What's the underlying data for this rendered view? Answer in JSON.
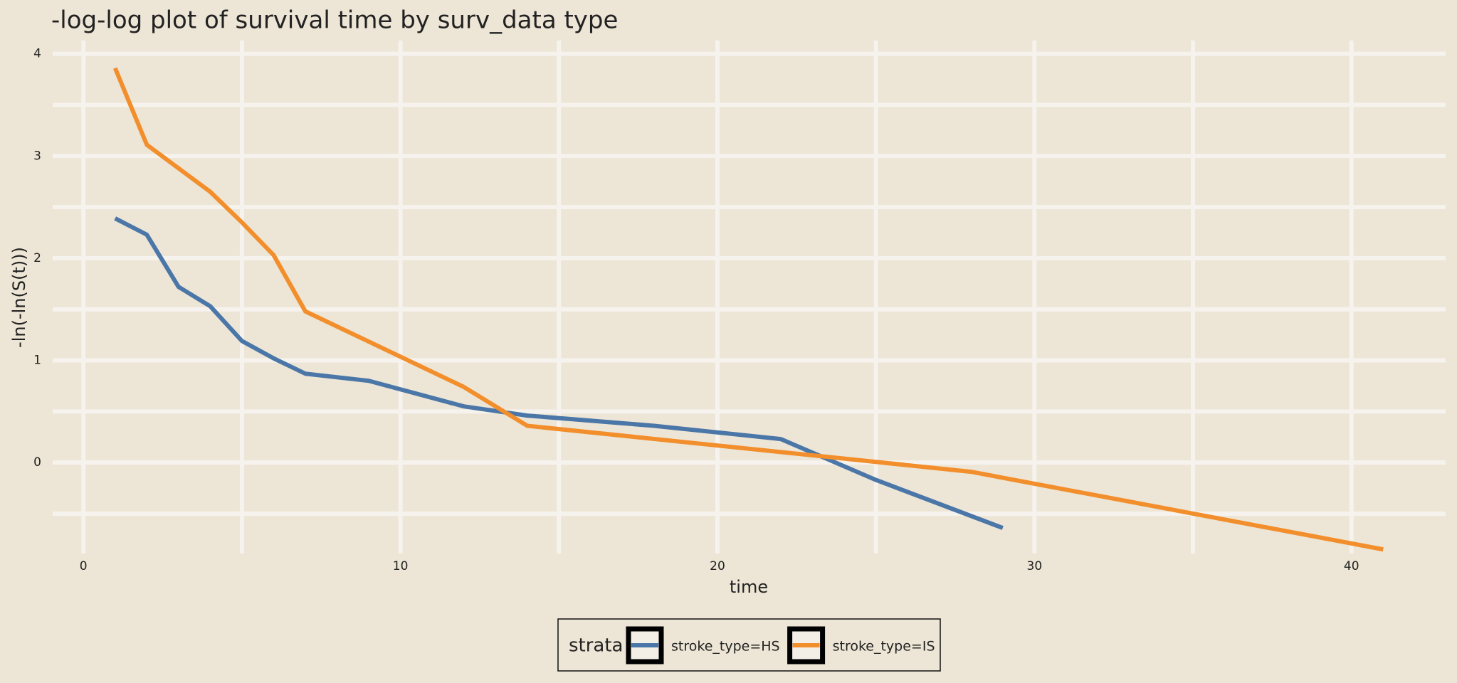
{
  "chart_data": {
    "type": "line",
    "title": "-log-log plot of survival time by surv_data type",
    "x_label": "time",
    "y_label": "-ln(-ln(S(t)))",
    "legend_title": "strata",
    "legend_position": "bottom",
    "grid": true,
    "xlim": [
      -0.97,
      42.97
    ],
    "ylim": [
      -0.89,
      4.13
    ],
    "xticks": [
      0,
      10,
      20,
      30,
      40
    ],
    "yticks": [
      0,
      1,
      2,
      3,
      4
    ],
    "x_minor_grid": [
      5,
      15,
      25,
      35
    ],
    "y_minor_grid": [
      -0.5,
      0.5,
      1.5,
      2.5,
      3.5
    ],
    "series": [
      {
        "name": "stroke_type=HS",
        "color": "#4a76a8",
        "x": [
          1,
          2,
          3,
          4,
          5,
          6,
          7,
          9,
          12,
          14,
          18,
          22,
          25,
          29
        ],
        "values": [
          2.39,
          2.23,
          1.72,
          1.53,
          1.19,
          1.02,
          0.87,
          0.8,
          0.55,
          0.46,
          0.36,
          0.23,
          -0.17,
          -0.64
        ]
      },
      {
        "name": "stroke_type=IS",
        "color": "#f28e2b",
        "x": [
          1,
          2,
          4,
          5,
          6,
          7,
          12,
          14,
          28,
          41
        ],
        "values": [
          3.86,
          3.11,
          2.65,
          2.35,
          2.03,
          1.48,
          0.74,
          0.36,
          -0.09,
          -0.85
        ]
      }
    ]
  }
}
